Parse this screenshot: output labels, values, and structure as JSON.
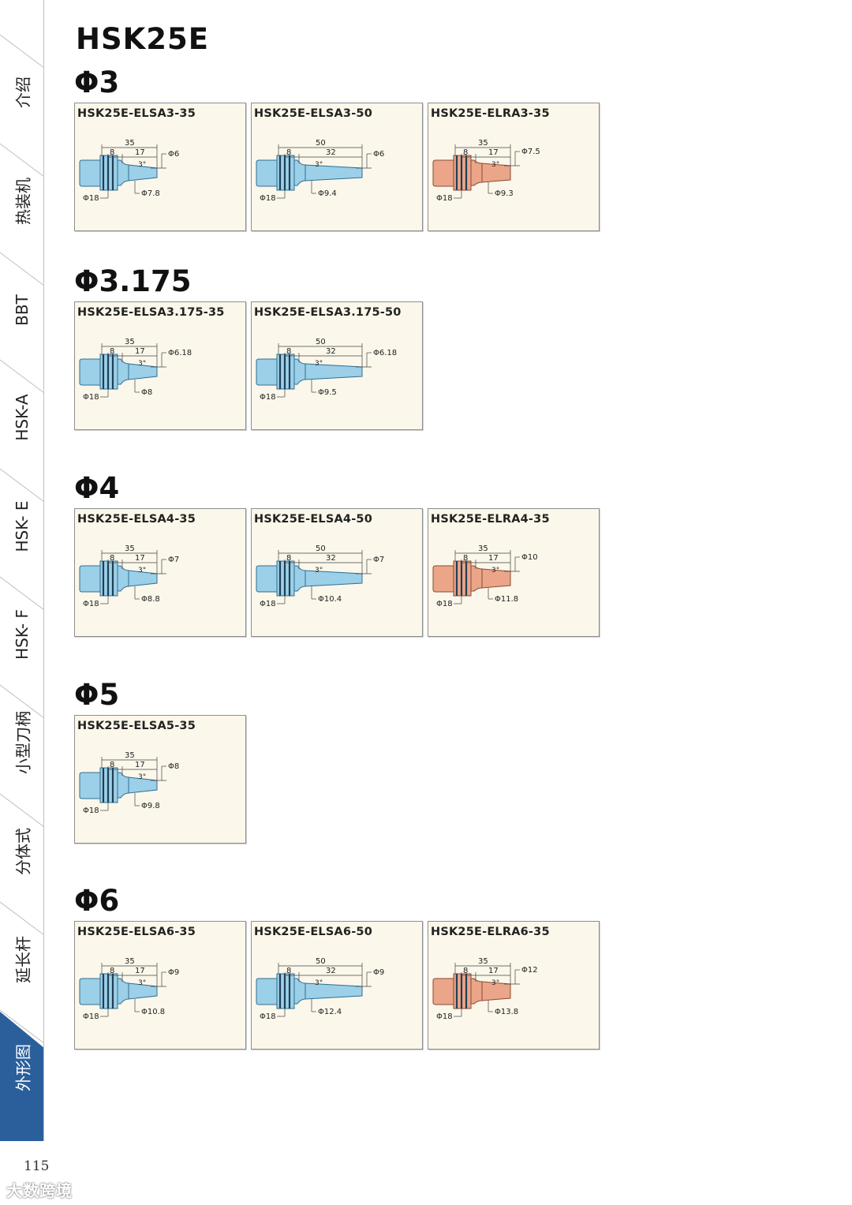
{
  "page_title": "HSK25E",
  "sidebar_tabs": [
    "介绍",
    "热装机",
    "BBT",
    "HSK-A",
    "HSK- E",
    "HSK- F",
    "小型刀柄",
    "分体式",
    "延长杆",
    "外形图"
  ],
  "active_tab": "外形图",
  "colors": {
    "blue_part": "#9ccfe8",
    "orange_part": "#eba589",
    "card_bg": "#fbf7ea",
    "sidebar_active": "#2b5f9c"
  },
  "sections": [
    {
      "title": "Φ3",
      "cards": [
        {
          "model": "HSK25E-ELSA3-35",
          "variant": "blue",
          "len": "35",
          "d1": "8",
          "d2": "17",
          "angle": "3°",
          "tip": "Φ6",
          "body": "Φ18",
          "root": "Φ7.8"
        },
        {
          "model": "HSK25E-ELSA3-50",
          "variant": "blue",
          "len": "50",
          "d1": "8",
          "d2": "32",
          "angle": "3°",
          "tip": "Φ6",
          "body": "Φ18",
          "root": "Φ9.4"
        },
        {
          "model": "HSK25E-ELRA3-35",
          "variant": "orange",
          "len": "35",
          "d1": "8",
          "d2": "17",
          "angle": "3°",
          "tip": "Φ7.5",
          "body": "Φ18",
          "root": "Φ9.3"
        }
      ]
    },
    {
      "title": "Φ3.175",
      "cards": [
        {
          "model": "HSK25E-ELSA3.175-35",
          "variant": "blue",
          "len": "35",
          "d1": "8",
          "d2": "17",
          "angle": "3°",
          "tip": "Φ6.18",
          "body": "Φ18",
          "root": "Φ8"
        },
        {
          "model": "HSK25E-ELSA3.175-50",
          "variant": "blue",
          "len": "50",
          "d1": "8",
          "d2": "32",
          "angle": "3°",
          "tip": "Φ6.18",
          "body": "Φ18",
          "root": "Φ9.5"
        }
      ]
    },
    {
      "title": "Φ4",
      "cards": [
        {
          "model": "HSK25E-ELSA4-35",
          "variant": "blue",
          "len": "35",
          "d1": "8",
          "d2": "17",
          "angle": "3°",
          "tip": "Φ7",
          "body": "Φ18",
          "root": "Φ8.8"
        },
        {
          "model": "HSK25E-ELSA4-50",
          "variant": "blue",
          "len": "50",
          "d1": "8",
          "d2": "32",
          "angle": "3°",
          "tip": "Φ7",
          "body": "Φ18",
          "root": "Φ10.4"
        },
        {
          "model": "HSK25E-ELRA4-35",
          "variant": "orange",
          "len": "35",
          "d1": "8",
          "d2": "17",
          "angle": "3°",
          "tip": "Φ10",
          "body": "Φ18",
          "root": "Φ11.8"
        }
      ]
    },
    {
      "title": "Φ5",
      "cards": [
        {
          "model": "HSK25E-ELSA5-35",
          "variant": "blue",
          "len": "35",
          "d1": "8",
          "d2": "17",
          "angle": "3°",
          "tip": "Φ8",
          "body": "Φ18",
          "root": "Φ9.8"
        }
      ]
    },
    {
      "title": "Φ6",
      "cards": [
        {
          "model": "HSK25E-ELSA6-35",
          "variant": "blue",
          "len": "35",
          "d1": "8",
          "d2": "17",
          "angle": "3°",
          "tip": "Φ9",
          "body": "Φ18",
          "root": "Φ10.8"
        },
        {
          "model": "HSK25E-ELSA6-50",
          "variant": "blue",
          "len": "50",
          "d1": "8",
          "d2": "32",
          "angle": "3°",
          "tip": "Φ9",
          "body": "Φ18",
          "root": "Φ12.4"
        },
        {
          "model": "HSK25E-ELRA6-35",
          "variant": "orange",
          "len": "35",
          "d1": "8",
          "d2": "17",
          "angle": "3°",
          "tip": "Φ12",
          "body": "Φ18",
          "root": "Φ13.8"
        }
      ]
    }
  ],
  "page_number": "115",
  "watermark": "大数跨境"
}
